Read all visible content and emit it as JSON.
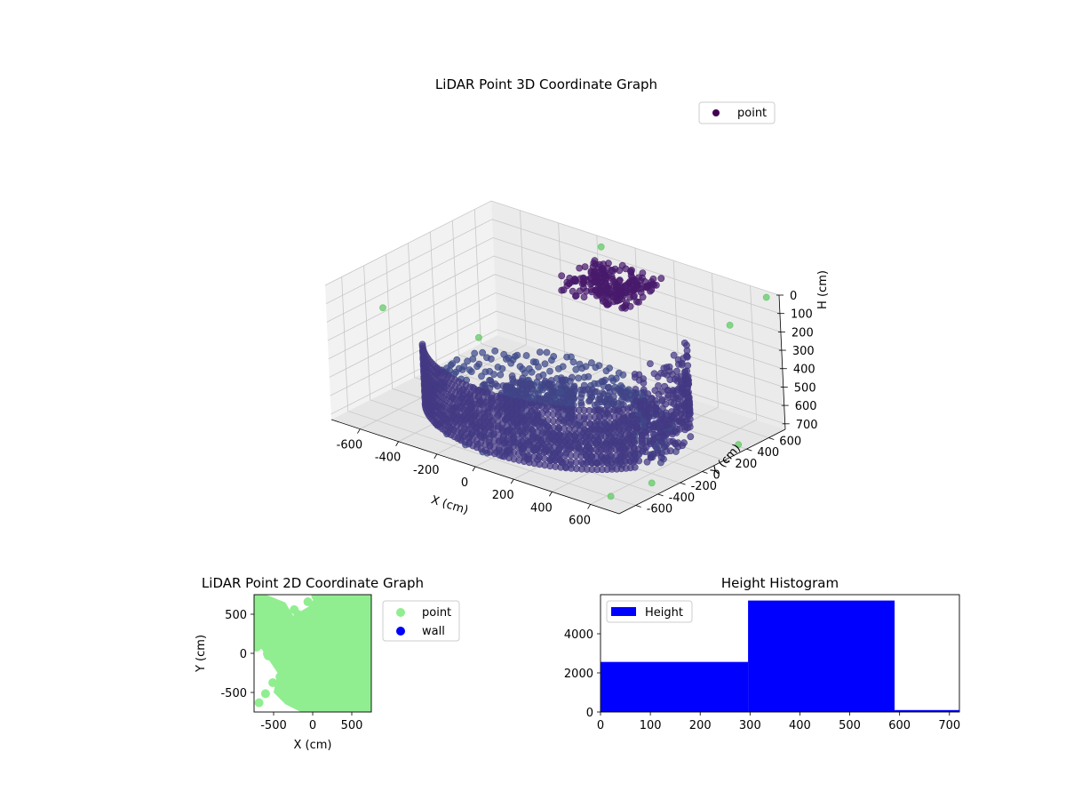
{
  "figure": {
    "colors": {
      "axis": "#000000",
      "grid": "#c8c8c8",
      "pane_left": "#f2f2f2",
      "pane_right": "#ebebeb",
      "pane_floor": "#e6e6e6",
      "legend_border": "#cccccc"
    }
  },
  "chart_data": [
    {
      "type": "scatter",
      "projection": "3d",
      "title": "LiDAR Point 3D Coordinate Graph",
      "xlabel": "X (cm)",
      "ylabel": "Y (cm)",
      "zlabel": "H (cm)",
      "xlim": [
        -750,
        750
      ],
      "ylim": [
        -750,
        750
      ],
      "zlim": [
        0,
        730
      ],
      "z_inverted": true,
      "x_ticks": [
        "-600",
        "-400",
        "-200",
        "0",
        "200",
        "400",
        "600"
      ],
      "y_ticks": [
        "-600",
        "-400",
        "-200",
        "0",
        "200",
        "400",
        "600"
      ],
      "z_ticks": [
        "0",
        "100",
        "200",
        "300",
        "400",
        "500",
        "600",
        "700"
      ],
      "grid": true,
      "legend": {
        "position": "upper-right",
        "entries": [
          "point"
        ]
      },
      "colormap": "viridis",
      "colors": {
        "legend_marker": "#440154"
      },
      "series": [
        {
          "name": "point",
          "note": "clustered points approximated by shape summaries",
          "floor_spiral": {
            "center": [
              0,
              0
            ],
            "radius_range": [
              40,
              650
            ],
            "turns": 1.7,
            "height_range": [
              560,
              700
            ]
          },
          "curved_wall": {
            "radius": 600,
            "angle_range_deg": [
              -150,
              30
            ],
            "height_range": [
              130,
              700
            ]
          },
          "upper_cluster": {
            "x_range": [
              -150,
              200
            ],
            "y_range": [
              300,
              650
            ],
            "height_range": [
              60,
              160
            ]
          },
          "outliers": [
            {
              "x": -700,
              "y": 500,
              "h": 650
            },
            {
              "x": 650,
              "y": -650,
              "h": 700
            },
            {
              "x": 700,
              "y": 720,
              "h": 20
            },
            {
              "x": -150,
              "y": 700,
              "h": 30
            },
            {
              "x": 500,
              "y": 720,
              "h": 240
            },
            {
              "x": 720,
              "y": -400,
              "h": 680
            },
            {
              "x": 720,
              "y": 380,
              "h": 710
            },
            {
              "x": -720,
              "y": -300,
              "h": 250
            }
          ]
        }
      ]
    },
    {
      "type": "scatter",
      "title": "LiDAR Point 2D Coordinate Graph",
      "xlabel": "X (cm)",
      "ylabel": "Y (cm)",
      "xlim": [
        -750,
        750
      ],
      "ylim": [
        -750,
        750
      ],
      "x_ticks": [
        "-500",
        "0",
        "500"
      ],
      "y_ticks": [
        "-500",
        "0",
        "500"
      ],
      "legend": {
        "position": "outside-right",
        "entries": [
          "point",
          "wall"
        ]
      },
      "series": [
        {
          "name": "point",
          "color": "#90ee90",
          "note": "dense filled region covering most of the plot"
        },
        {
          "name": "wall",
          "color": "#0000ff",
          "points": []
        }
      ]
    },
    {
      "type": "bar",
      "title": "Height Histogram",
      "xlim": [
        0,
        720
      ],
      "ylim": [
        0,
        6000
      ],
      "x_ticks": [
        "0",
        "100",
        "200",
        "300",
        "400",
        "500",
        "600",
        "700"
      ],
      "y_ticks": [
        "0",
        "2000",
        "4000"
      ],
      "legend": {
        "position": "upper-left",
        "entries": [
          "Height"
        ]
      },
      "series": [
        {
          "name": "Height",
          "color": "#0000ff",
          "bins": [
            {
              "start": 0,
              "end": 296,
              "count": 2560
            },
            {
              "start": 296,
              "end": 590,
              "count": 5700
            },
            {
              "start": 590,
              "end": 720,
              "count": 100
            }
          ]
        }
      ]
    }
  ]
}
